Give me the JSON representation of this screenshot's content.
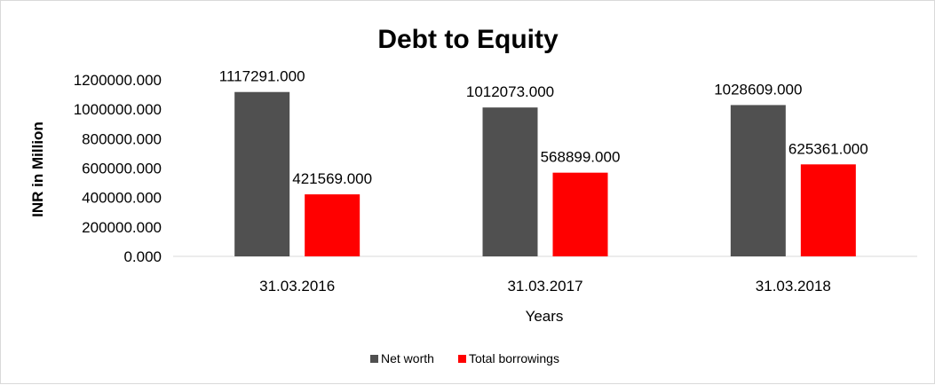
{
  "chart_data": {
    "type": "bar",
    "title": "Debt to Equity",
    "xlabel": "Years",
    "ylabel": "INR in Million",
    "categories": [
      "31.03.2016",
      "31.03.2017",
      "31.03.2018"
    ],
    "series": [
      {
        "name": "Net worth",
        "color": "#505050",
        "values": [
          1117291,
          1012073,
          1028609
        ],
        "labels": [
          "1117291.000",
          "1012073.000",
          "1028609.000"
        ]
      },
      {
        "name": "Total borrowings",
        "color": "#ff0000",
        "values": [
          421569,
          568899,
          625361
        ],
        "labels": [
          "421569.000",
          "568899.000",
          "625361.000"
        ]
      }
    ],
    "ylim": [
      0,
      1200000
    ],
    "yticks": [
      0,
      200000,
      400000,
      600000,
      800000,
      1000000,
      1200000
    ],
    "ytick_labels": [
      "0.000",
      "200000.000",
      "400000.000",
      "600000.000",
      "800000.000",
      "1000000.000",
      "1200000.000"
    ],
    "grid": false,
    "legend_position": "bottom"
  }
}
